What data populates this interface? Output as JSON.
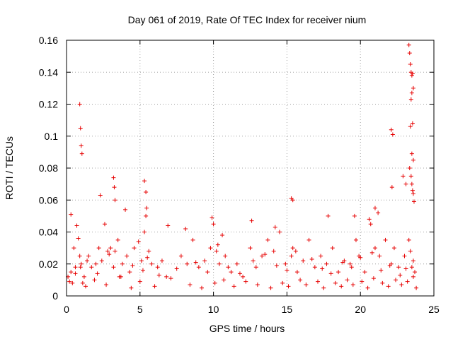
{
  "chart_data": {
    "type": "scatter",
    "title": "Day 061 of 2019, Rate Of TEC Index for receiver nium",
    "xlabel": "GPS time / hours",
    "ylabel": "ROTI / TECUs",
    "xlim": [
      0,
      25
    ],
    "ylim": [
      0,
      0.16
    ],
    "xticks": [
      0,
      5,
      10,
      15,
      20,
      25
    ],
    "yticks": [
      0,
      0.02,
      0.04,
      0.06,
      0.08,
      0.1,
      0.12,
      0.14,
      0.16
    ],
    "xtick_labels": [
      "0",
      "5",
      "10",
      "15",
      "20",
      "25"
    ],
    "ytick_labels": [
      "0",
      "0.02",
      "0.04",
      "0.06",
      "0.08",
      "0.1",
      "0.12",
      "0.14",
      "0.16"
    ],
    "grid": true,
    "marker": "+",
    "color": "#e60000",
    "series": [
      {
        "name": "ROTI",
        "x": [
          0.1,
          0.2,
          0.3,
          0.5,
          0.6,
          0.8,
          0.9,
          0.95,
          1.0,
          1.1,
          1.2,
          1.5,
          1.7,
          2.0,
          2.2,
          2.4,
          2.6,
          2.8,
          3.0,
          3.2,
          3.3,
          3.5,
          3.8,
          4.1,
          4.3,
          4.6,
          4.9,
          5.1,
          5.3,
          5.4,
          5.6,
          5.8,
          6.2,
          6.5,
          6.8,
          7.8,
          8.2,
          8.6,
          9.0,
          9.4,
          9.8,
          10.0,
          10.2,
          10.4,
          10.6,
          10.8,
          11.2,
          11.6,
          12.0,
          12.5,
          12.9,
          13.3,
          13.7,
          14.1,
          14.5,
          14.9,
          15.3,
          15.4,
          15.7,
          16.1,
          16.5,
          16.9,
          17.3,
          17.7,
          18.1,
          18.5,
          18.9,
          19.3,
          19.7,
          19.9,
          20.3,
          20.7,
          21.0,
          21.3,
          21.7,
          22.1,
          22.3,
          22.6,
          23.0,
          23.3,
          23.4,
          23.5,
          23.6,
          23.7,
          0.9,
          0.95,
          1.0,
          1.05,
          0.3,
          2.3,
          3.2,
          3.25,
          3.3,
          5.3,
          5.4,
          5.45,
          15.3,
          15.4,
          22.1,
          22.2,
          22.15,
          22.9,
          23.1,
          23.3,
          23.35,
          23.4,
          23.45,
          23.5,
          23.55,
          23.6,
          23.5,
          23.45,
          23.55,
          23.4,
          23.5,
          23.6,
          23.35,
          23.45,
          23.5,
          23.55,
          23.6,
          23.65,
          19.6,
          21.0,
          21.2,
          0.7,
          4.0,
          6.9,
          8.1,
          9.9,
          12.6,
          14.2,
          17.8,
          20.6,
          0.4,
          1.3,
          1.9,
          2.7,
          3.6,
          4.4,
          5.0,
          6.0,
          7.1,
          8.4,
          9.2,
          10.1,
          10.7,
          11.4,
          12.2,
          13.0,
          13.9,
          14.7,
          15.1,
          15.9,
          16.3,
          17.1,
          17.5,
          18.3,
          18.7,
          19.1,
          19.5,
          20.1,
          20.5,
          20.9,
          21.5,
          21.9,
          22.4,
          22.8,
          23.2,
          23.8,
          0.6,
          1.4,
          2.1,
          2.9,
          3.7,
          4.5,
          5.2,
          5.5,
          6.3,
          7.5,
          8.8,
          9.6,
          10.3,
          11.0,
          11.8,
          12.7,
          13.5,
          14.3,
          15.0,
          15.6,
          16.7,
          17.4,
          18.0,
          18.8,
          19.4,
          20.0,
          20.8,
          21.4,
          22.0,
          22.7,
          23.1,
          23.6
        ],
        "y": [
          0.012,
          0.009,
          0.015,
          0.03,
          0.014,
          0.036,
          0.025,
          0.018,
          0.02,
          0.008,
          0.012,
          0.025,
          0.018,
          0.02,
          0.03,
          0.022,
          0.045,
          0.028,
          0.03,
          0.018,
          0.028,
          0.035,
          0.02,
          0.025,
          0.015,
          0.03,
          0.034,
          0.022,
          0.04,
          0.05,
          0.028,
          0.02,
          0.018,
          0.022,
          0.012,
          0.025,
          0.02,
          0.035,
          0.018,
          0.022,
          0.03,
          0.045,
          0.028,
          0.02,
          0.038,
          0.025,
          0.015,
          0.02,
          0.012,
          0.03,
          0.018,
          0.025,
          0.035,
          0.028,
          0.04,
          0.02,
          0.025,
          0.03,
          0.015,
          0.022,
          0.035,
          0.018,
          0.025,
          0.02,
          0.03,
          0.015,
          0.022,
          0.02,
          0.035,
          0.025,
          0.015,
          0.045,
          0.03,
          0.025,
          0.035,
          0.02,
          0.03,
          0.018,
          0.025,
          0.035,
          0.028,
          0.018,
          0.022,
          0.015,
          0.12,
          0.105,
          0.094,
          0.089,
          0.051,
          0.063,
          0.074,
          0.068,
          0.06,
          0.072,
          0.065,
          0.055,
          0.061,
          0.06,
          0.104,
          0.101,
          0.068,
          0.075,
          0.07,
          0.157,
          0.152,
          0.145,
          0.14,
          0.138,
          0.139,
          0.13,
          0.127,
          0.123,
          0.108,
          0.106,
          0.089,
          0.085,
          0.08,
          0.075,
          0.07,
          0.066,
          0.064,
          0.059,
          0.05,
          0.055,
          0.052,
          0.044,
          0.054,
          0.044,
          0.042,
          0.049,
          0.047,
          0.043,
          0.05,
          0.048,
          0.008,
          0.006,
          0.01,
          0.007,
          0.012,
          0.005,
          0.009,
          0.006,
          0.011,
          0.007,
          0.005,
          0.008,
          0.01,
          0.006,
          0.009,
          0.007,
          0.005,
          0.008,
          0.006,
          0.01,
          0.007,
          0.009,
          0.005,
          0.008,
          0.006,
          0.01,
          0.007,
          0.009,
          0.005,
          0.011,
          0.008,
          0.006,
          0.01,
          0.007,
          0.009,
          0.005,
          0.018,
          0.022,
          0.014,
          0.026,
          0.012,
          0.019,
          0.016,
          0.024,
          0.013,
          0.017,
          0.021,
          0.015,
          0.032,
          0.018,
          0.014,
          0.022,
          0.026,
          0.019,
          0.016,
          0.028,
          0.023,
          0.017,
          0.014,
          0.021,
          0.018,
          0.024,
          0.027,
          0.016,
          0.019,
          0.013,
          0.017,
          0.012
        ]
      }
    ]
  }
}
